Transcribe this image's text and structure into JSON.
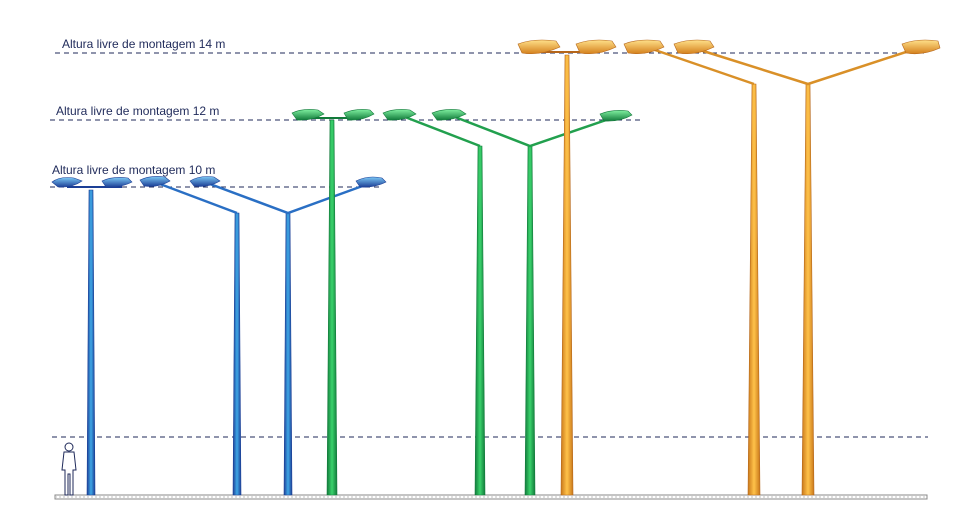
{
  "labels": {
    "h14": "Altura livre de montagem 14 m",
    "h12": "Altura livre de montagem 12 m",
    "h10": "Altura livre de montagem 10 m"
  },
  "colors": {
    "blue_light": "#3ea7e6",
    "blue_dark": "#1c3f96",
    "green_light": "#3ad36c",
    "green_dark": "#117a3a",
    "orange_light": "#ffc24a",
    "orange_dark": "#c9781a",
    "guide_line": "#1f2a5a",
    "ground": "#888888"
  },
  "scene": {
    "mounting_heights_m": [
      10,
      12,
      14
    ],
    "human_figure": "standing-person-icon"
  }
}
